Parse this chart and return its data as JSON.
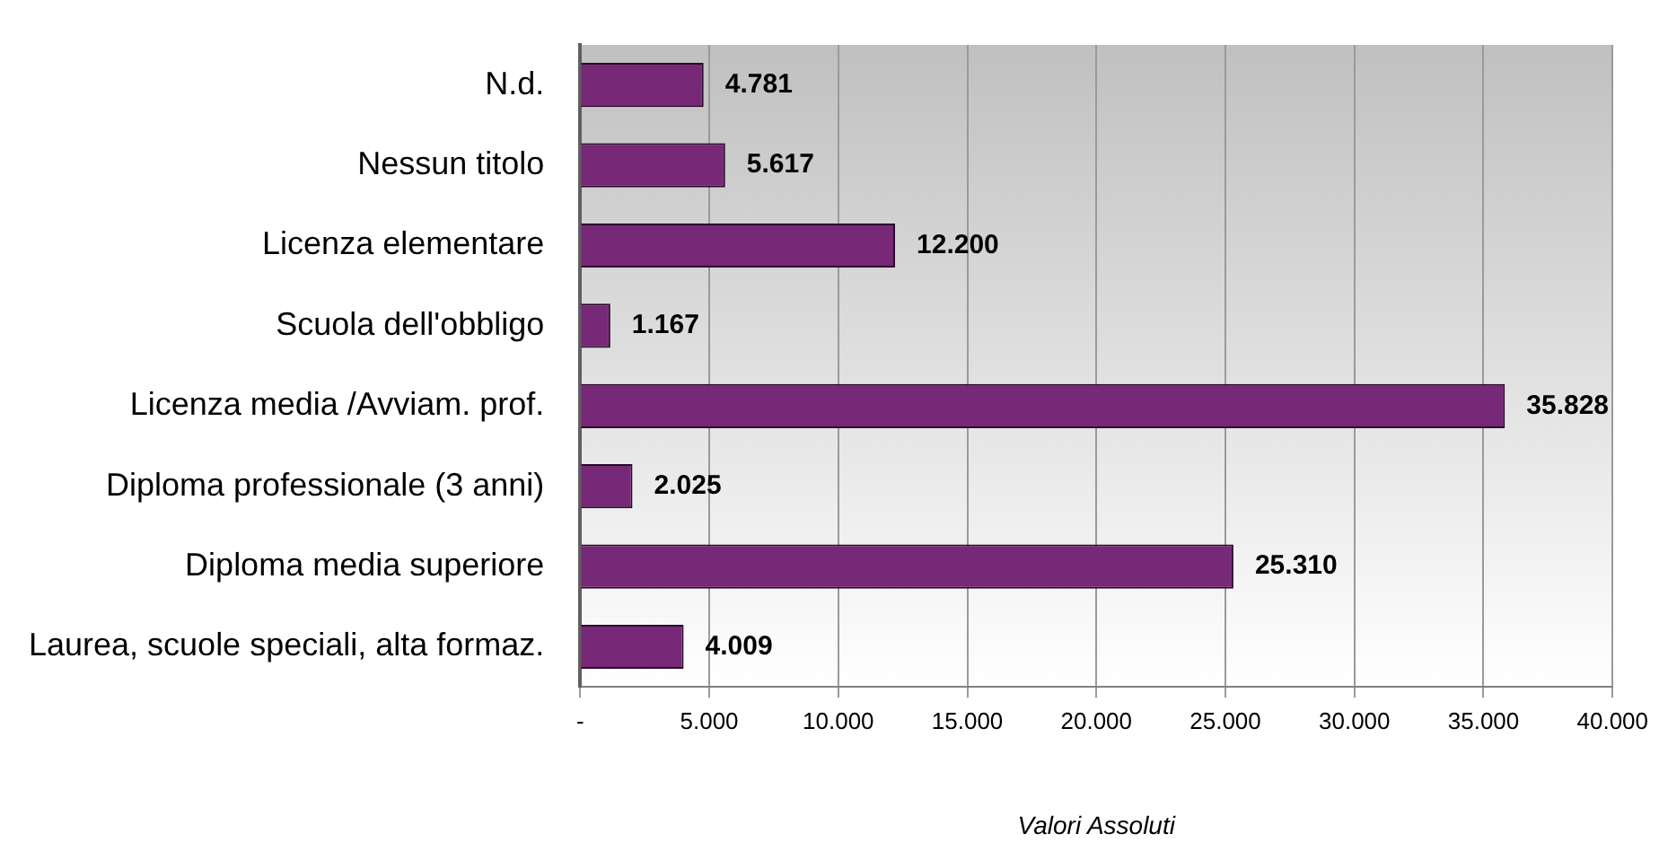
{
  "chart_data": {
    "type": "bar",
    "orientation": "horizontal",
    "xlabel": "Valori Assoluti",
    "categories": [
      "N.d.",
      "Nessun titolo",
      "Licenza elementare",
      "Scuola dell'obbligo",
      "Licenza media /Avviam. prof.",
      "Diploma professionale (3 anni)",
      "Diploma media superiore",
      "Laurea, scuole speciali, alta formaz."
    ],
    "values": [
      4781,
      5617,
      12200,
      1167,
      35828,
      2025,
      25310,
      4009
    ],
    "value_labels": [
      "4.781",
      "5.617",
      "12.200",
      "1.167",
      "35.828",
      "2.025",
      "25.310",
      "4.009"
    ],
    "color": "#772877",
    "xlim": [
      0,
      40000
    ],
    "xticks": [
      {
        "value": 0,
        "label": "-"
      },
      {
        "value": 5000,
        "label": "5.000"
      },
      {
        "value": 10000,
        "label": "10.000"
      },
      {
        "value": 15000,
        "label": "15.000"
      },
      {
        "value": 20000,
        "label": "20.000"
      },
      {
        "value": 25000,
        "label": "25.000"
      },
      {
        "value": 30000,
        "label": "30.000"
      },
      {
        "value": 35000,
        "label": "35.000"
      },
      {
        "value": 40000,
        "label": "40.000"
      }
    ],
    "grid": "x"
  }
}
